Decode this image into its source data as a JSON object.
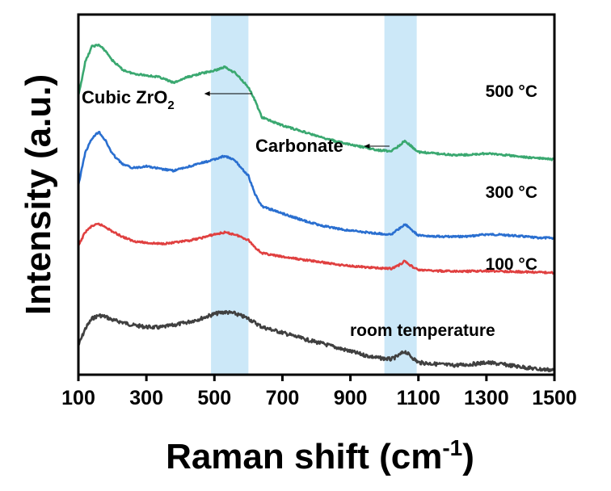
{
  "chart_data": {
    "type": "line",
    "xlabel": "Raman shift (cm",
    "xlabel_superscript": "-1",
    "xlabel_suffix": ")",
    "ylabel": "Intensity (a.u.)",
    "xlim": [
      100,
      1500
    ],
    "xticks": [
      100,
      300,
      500,
      700,
      900,
      1100,
      1300,
      1500
    ],
    "x_tick_labels": [
      "100",
      "300",
      "500",
      "700",
      "900",
      "1100",
      "1300",
      "1500"
    ],
    "y_ticks_shown": false,
    "y_scale": "arbitrary units, curves vertically offset",
    "grid": false,
    "highlight_bands": [
      {
        "x_range": [
          490,
          600
        ],
        "color": "#cce8f8"
      },
      {
        "x_range": [
          1000,
          1095
        ],
        "color": "#cce8f8"
      }
    ],
    "annotations": [
      {
        "text": "Cubic ZrO",
        "subscript": "2",
        "arrow_from": 610,
        "arrow_to": 470,
        "y": 5.47
      },
      {
        "text": "Carbonate",
        "arrow_from": 1015,
        "arrow_to": 940,
        "y": 3.97
      }
    ],
    "series": [
      {
        "name": "room temperature",
        "color": "#404040",
        "x": [
          100,
          120,
          140,
          160,
          180,
          200,
          230,
          260,
          300,
          340,
          380,
          420,
          460,
          500,
          530,
          560,
          600,
          640,
          700,
          760,
          820,
          880,
          940,
          980,
          1020,
          1040,
          1060,
          1080,
          1100,
          1150,
          1200,
          1250,
          1300,
          1350,
          1400,
          1450,
          1500
        ],
        "y": [
          0.62,
          0.98,
          1.2,
          1.27,
          1.24,
          1.17,
          1.12,
          1.06,
          1.02,
          1.01,
          1.06,
          1.12,
          1.2,
          1.3,
          1.34,
          1.31,
          1.2,
          1.02,
          0.9,
          0.77,
          0.66,
          0.54,
          0.42,
          0.36,
          0.33,
          0.4,
          0.5,
          0.38,
          0.26,
          0.23,
          0.2,
          0.22,
          0.26,
          0.22,
          0.17,
          0.12,
          0.1
        ]
      },
      {
        "name": "100 °C",
        "color": "#e04040",
        "x": [
          100,
          120,
          140,
          160,
          180,
          200,
          230,
          260,
          300,
          340,
          380,
          420,
          460,
          500,
          530,
          560,
          600,
          620,
          640,
          700,
          760,
          820,
          880,
          940,
          980,
          1020,
          1040,
          1060,
          1080,
          1100,
          1150,
          1200,
          1250,
          1300,
          1350,
          1400,
          1450,
          1500
        ],
        "y": [
          2.75,
          3.05,
          3.18,
          3.22,
          3.16,
          3.06,
          2.95,
          2.86,
          2.82,
          2.8,
          2.82,
          2.86,
          2.92,
          3.0,
          3.04,
          3.0,
          2.88,
          2.72,
          2.6,
          2.52,
          2.46,
          2.4,
          2.34,
          2.3,
          2.28,
          2.27,
          2.33,
          2.43,
          2.32,
          2.24,
          2.22,
          2.21,
          2.21,
          2.22,
          2.21,
          2.2,
          2.19,
          2.18
        ]
      },
      {
        "name": "300 °C",
        "color": "#2a6fd0",
        "x": [
          100,
          120,
          140,
          160,
          180,
          200,
          230,
          260,
          300,
          340,
          380,
          420,
          460,
          500,
          530,
          560,
          600,
          620,
          640,
          700,
          760,
          820,
          880,
          940,
          980,
          1020,
          1040,
          1060,
          1080,
          1100,
          1150,
          1200,
          1250,
          1300,
          1350,
          1400,
          1450,
          1500
        ],
        "y": [
          4.05,
          4.75,
          5.05,
          5.2,
          5.0,
          4.72,
          4.5,
          4.42,
          4.46,
          4.4,
          4.36,
          4.44,
          4.52,
          4.6,
          4.68,
          4.58,
          4.25,
          3.85,
          3.6,
          3.45,
          3.3,
          3.18,
          3.1,
          3.05,
          3.02,
          3.0,
          3.1,
          3.22,
          3.1,
          2.98,
          2.96,
          2.95,
          2.96,
          3.0,
          2.99,
          2.96,
          2.93,
          2.92
        ]
      },
      {
        "name": "500 °C",
        "color": "#3aa870",
        "x": [
          100,
          120,
          140,
          160,
          180,
          200,
          230,
          260,
          300,
          340,
          380,
          420,
          460,
          500,
          530,
          560,
          600,
          620,
          640,
          700,
          760,
          820,
          880,
          940,
          980,
          1020,
          1040,
          1060,
          1080,
          1100,
          1150,
          1200,
          1250,
          1300,
          1350,
          1400,
          1450,
          1500
        ],
        "y": [
          5.95,
          6.68,
          7.02,
          7.05,
          6.92,
          6.72,
          6.52,
          6.44,
          6.4,
          6.36,
          6.24,
          6.36,
          6.44,
          6.5,
          6.58,
          6.46,
          6.15,
          5.85,
          5.5,
          5.33,
          5.2,
          5.06,
          4.95,
          4.86,
          4.8,
          4.78,
          4.88,
          5.0,
          4.88,
          4.76,
          4.73,
          4.7,
          4.7,
          4.73,
          4.7,
          4.66,
          4.63,
          4.6
        ]
      }
    ]
  }
}
